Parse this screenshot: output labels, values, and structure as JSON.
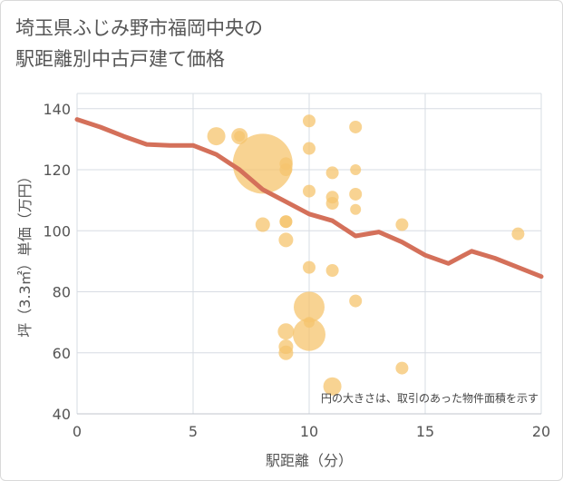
{
  "title_line1": "埼玉県ふじみ野市福岡中央の",
  "title_line2": "駅距離別中古戸建て価格",
  "chart_data": {
    "type": "scatter",
    "title": "埼玉県ふじみ野市福岡中央の駅距離別中古戸建て価格",
    "xlabel": "駅距離（分）",
    "ylabel": "坪（3.3㎡）単価（万円）",
    "xlim": [
      0,
      20
    ],
    "ylim": [
      40,
      145
    ],
    "xticks": [
      0,
      5,
      10,
      15,
      20
    ],
    "yticks": [
      40,
      60,
      80,
      100,
      120,
      140
    ],
    "grid": true,
    "note": "円の大きさは、取引のあった物件面積を示す",
    "bubble_color": "#f5c46e",
    "trend_color": "#d4705a",
    "points": [
      {
        "x": 6,
        "y": 131,
        "r": 10
      },
      {
        "x": 7,
        "y": 131,
        "r": 9
      },
      {
        "x": 7,
        "y": 131,
        "r": 6
      },
      {
        "x": 8,
        "y": 122,
        "r": 33
      },
      {
        "x": 8,
        "y": 102,
        "r": 8
      },
      {
        "x": 9,
        "y": 122,
        "r": 7
      },
      {
        "x": 9,
        "y": 120,
        "r": 7
      },
      {
        "x": 9,
        "y": 103,
        "r": 7
      },
      {
        "x": 9,
        "y": 103,
        "r": 7
      },
      {
        "x": 9,
        "y": 97,
        "r": 8
      },
      {
        "x": 9,
        "y": 67,
        "r": 9
      },
      {
        "x": 9,
        "y": 62,
        "r": 8
      },
      {
        "x": 9,
        "y": 60,
        "r": 8
      },
      {
        "x": 10,
        "y": 136,
        "r": 7
      },
      {
        "x": 10,
        "y": 127,
        "r": 7
      },
      {
        "x": 10,
        "y": 113,
        "r": 7
      },
      {
        "x": 10,
        "y": 88,
        "r": 7
      },
      {
        "x": 10,
        "y": 75,
        "r": 17
      },
      {
        "x": 10,
        "y": 70,
        "r": 6
      },
      {
        "x": 10,
        "y": 66,
        "r": 18
      },
      {
        "x": 11,
        "y": 119,
        "r": 7
      },
      {
        "x": 11,
        "y": 111,
        "r": 7
      },
      {
        "x": 11,
        "y": 109,
        "r": 7
      },
      {
        "x": 11,
        "y": 87,
        "r": 7
      },
      {
        "x": 11,
        "y": 49,
        "r": 10
      },
      {
        "x": 12,
        "y": 134,
        "r": 7
      },
      {
        "x": 12,
        "y": 120,
        "r": 6
      },
      {
        "x": 12,
        "y": 112,
        "r": 7
      },
      {
        "x": 12,
        "y": 107,
        "r": 6
      },
      {
        "x": 12,
        "y": 77,
        "r": 7
      },
      {
        "x": 14,
        "y": 102,
        "r": 7
      },
      {
        "x": 14,
        "y": 55,
        "r": 7
      },
      {
        "x": 19,
        "y": 99,
        "r": 7
      }
    ],
    "trend": {
      "x": [
        0,
        1,
        2,
        3,
        4,
        5,
        6,
        7,
        8,
        9,
        10,
        11,
        12,
        13,
        14,
        15,
        16,
        17,
        18,
        19,
        20
      ],
      "y": [
        136.5,
        134,
        131,
        128.3,
        128,
        128,
        125,
        120,
        113.5,
        109.5,
        105.5,
        103.3,
        98.3,
        99.6,
        96.3,
        92,
        89.3,
        93.3,
        91,
        88,
        85
      ]
    }
  }
}
